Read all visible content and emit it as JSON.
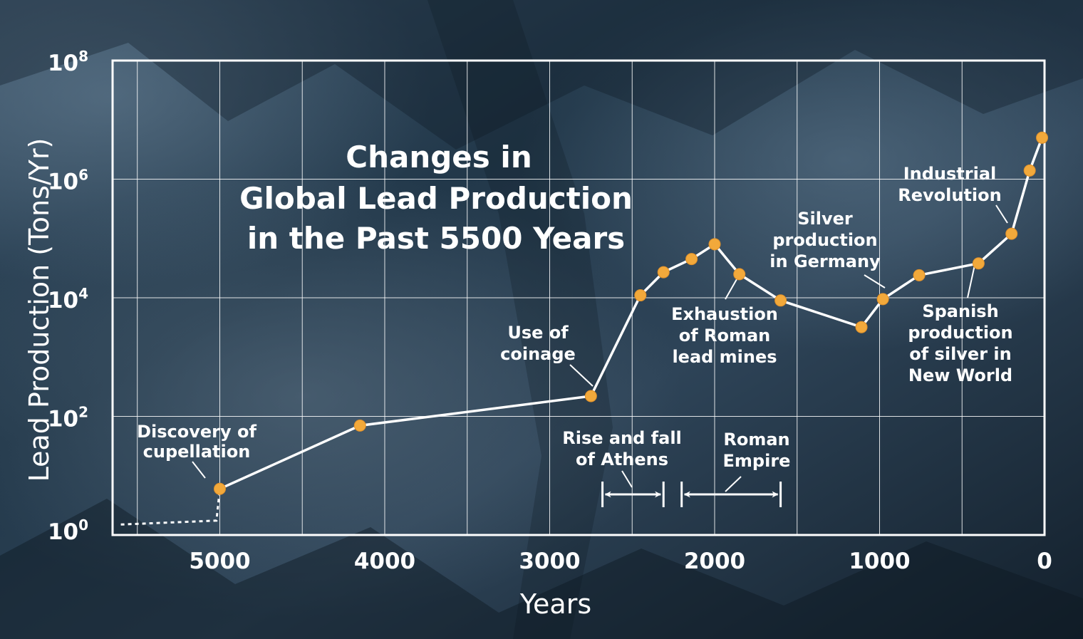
{
  "colors": {
    "line": "#ffffff",
    "marker": "#f2a93b",
    "grid": "#ffffff",
    "background_dark": "#13202c",
    "background_light": "#3b5368"
  },
  "chart_data": {
    "type": "line",
    "title_lines": [
      "Changes in",
      "Global Lead Production",
      "in the Past 5500 Years"
    ],
    "xlabel": "Years",
    "ylabel": "Lead Production  (Tons/Yr)",
    "x_reversed": true,
    "xlim": [
      5650,
      0
    ],
    "ylim": [
      1,
      100000000
    ],
    "y_scale": "log",
    "grid": true,
    "x_ticks": [
      {
        "value": 5000,
        "label": "5000"
      },
      {
        "value": 4000,
        "label": "4000"
      },
      {
        "value": 3000,
        "label": "3000"
      },
      {
        "value": 2000,
        "label": "2000"
      },
      {
        "value": 1000,
        "label": "1000"
      },
      {
        "value": 0,
        "label": "0"
      }
    ],
    "y_ticks": [
      {
        "value": 1,
        "base": "10",
        "exp": "0"
      },
      {
        "value": 100,
        "base": "10",
        "exp": "2"
      },
      {
        "value": 10000,
        "base": "10",
        "exp": "4"
      },
      {
        "value": 1000000,
        "base": "10",
        "exp": "6"
      },
      {
        "value": 100000000,
        "base": "10",
        "exp": "8"
      }
    ],
    "x_grid": [
      5500,
      5000,
      4500,
      4000,
      3500,
      3000,
      2500,
      2000,
      1500,
      1000,
      500,
      0
    ],
    "y_grid": [
      1,
      100,
      10000,
      1000000,
      100000000
    ],
    "series": [
      {
        "points": [
          {
            "x": 5000,
            "y": 6
          },
          {
            "x": 4150,
            "y": 70
          },
          {
            "x": 2750,
            "y": 220
          },
          {
            "x": 2450,
            "y": 11000
          },
          {
            "x": 2310,
            "y": 27000
          },
          {
            "x": 2140,
            "y": 45000
          },
          {
            "x": 2000,
            "y": 80000
          },
          {
            "x": 1850,
            "y": 25000
          },
          {
            "x": 1600,
            "y": 9000
          },
          {
            "x": 1110,
            "y": 3200
          },
          {
            "x": 980,
            "y": 9500
          },
          {
            "x": 760,
            "y": 24000
          },
          {
            "x": 400,
            "y": 38000
          },
          {
            "x": 200,
            "y": 120000
          },
          {
            "x": 90,
            "y": 1400000
          },
          {
            "x": 15,
            "y": 5000000
          }
        ]
      }
    ],
    "baseline_dotted": [
      {
        "x": 5600,
        "y": 1.5
      },
      {
        "x": 5020,
        "y": 1.75
      },
      {
        "x": 5000,
        "y": 6
      }
    ],
    "annotations": [
      {
        "lines": [
          "Discovery of",
          "cupellation"
        ]
      },
      {
        "lines": [
          "Use of",
          "coinage"
        ]
      },
      {
        "lines": [
          "Exhaustion",
          "of Roman",
          "lead mines"
        ]
      },
      {
        "lines": [
          "Silver",
          "production",
          "in Germany"
        ]
      },
      {
        "lines": [
          "Industrial",
          "Revolution"
        ]
      },
      {
        "lines": [
          "Spanish",
          "production",
          "of silver in",
          "New World"
        ]
      },
      {
        "lines": [
          "Rise and fall",
          "of Athens"
        ],
        "span": [
          2680,
          2310
        ]
      },
      {
        "lines": [
          "Roman",
          "Empire"
        ],
        "span": [
          2200,
          1600
        ]
      }
    ]
  }
}
